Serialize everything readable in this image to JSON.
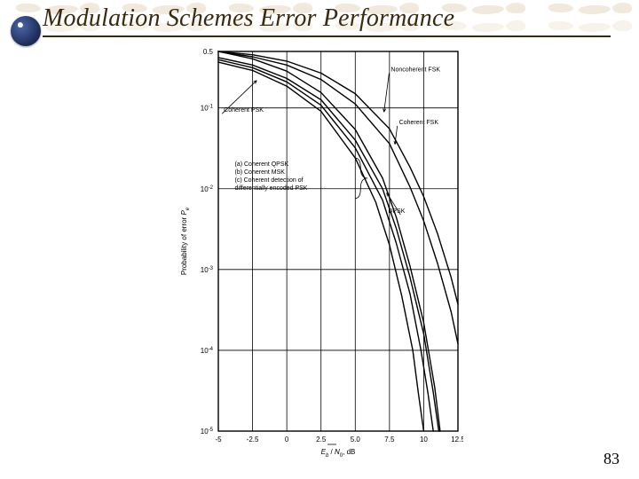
{
  "title": "Modulation Schemes Error Performance",
  "page_number": "83",
  "chart": {
    "type": "line",
    "background_color": "#ffffff",
    "grid_color": "#000000",
    "axis": {
      "x": {
        "label_tex": "E_b / N_0, dB",
        "min": -5.0,
        "max": 12.5,
        "ticks": [
          -5,
          -2.5,
          0,
          2.5,
          5.0,
          7.5,
          10,
          12.5
        ],
        "tick_labels": [
          "-5",
          "-2.5",
          "0",
          "2.5",
          "5.0",
          "7.5",
          "10",
          "12.5"
        ]
      },
      "y": {
        "label": "Probability of error  P_e",
        "log": true,
        "exponents": [
          -1,
          -2,
          -3,
          -4,
          -5
        ],
        "top_label": "0.5",
        "extra_top_exp": -0.301
      }
    },
    "grid": {
      "line_width": 1
    },
    "curve_color": "#000000",
    "curve_width": 1.4,
    "curves": {
      "coherent_psk": [
        [
          -5,
          0.368
        ],
        [
          -2.5,
          0.291
        ],
        [
          0,
          0.186
        ],
        [
          2.5,
          0.091
        ],
        [
          5,
          0.024
        ],
        [
          6.5,
          0.0068
        ],
        [
          7.5,
          0.002
        ],
        [
          8.4,
          0.00047
        ],
        [
          9.2,
          0.0001
        ],
        [
          9.6,
          3e-05
        ],
        [
          10.0,
          1e-05
        ]
      ],
      "coherent_qpsk_msk": [
        [
          -5,
          0.395
        ],
        [
          -2.5,
          0.315
        ],
        [
          0,
          0.21
        ],
        [
          2.5,
          0.108
        ],
        [
          5,
          0.032
        ],
        [
          7,
          0.0072
        ],
        [
          8,
          0.0021
        ],
        [
          9,
          0.0005
        ],
        [
          9.8,
          0.0001
        ],
        [
          10.3,
          3e-05
        ],
        [
          10.7,
          1e-05
        ]
      ],
      "coherent_diffenc_psk": [
        [
          -5,
          0.42
        ],
        [
          -2.5,
          0.34
        ],
        [
          0,
          0.232
        ],
        [
          2.5,
          0.126
        ],
        [
          5,
          0.04
        ],
        [
          7,
          0.01
        ],
        [
          8,
          0.0032
        ],
        [
          9,
          0.0008
        ],
        [
          10,
          0.00016
        ],
        [
          10.7,
          3e-05
        ],
        [
          11.1,
          1e-05
        ]
      ],
      "dpsk": [
        [
          -5,
          0.5
        ],
        [
          -2.5,
          0.405
        ],
        [
          0,
          0.285
        ],
        [
          2.5,
          0.155
        ],
        [
          5,
          0.054
        ],
        [
          7,
          0.0135
        ],
        [
          8,
          0.0044
        ],
        [
          9,
          0.0011
        ],
        [
          10,
          0.00022
        ],
        [
          10.8,
          3.5e-05
        ],
        [
          11.2,
          1e-05
        ]
      ],
      "coherent_fsk": [
        [
          -5,
          0.5
        ],
        [
          -2.5,
          0.43
        ],
        [
          0,
          0.34
        ],
        [
          2.5,
          0.225
        ],
        [
          5,
          0.112
        ],
        [
          7.5,
          0.036
        ],
        [
          9,
          0.0105
        ],
        [
          10,
          0.004
        ],
        [
          11,
          0.0012
        ],
        [
          12,
          0.0003
        ],
        [
          12.5,
          0.00012
        ]
      ],
      "noncoherent_fsk": [
        [
          -5,
          0.5
        ],
        [
          -2.5,
          0.455
        ],
        [
          0,
          0.38
        ],
        [
          2.5,
          0.27
        ],
        [
          5,
          0.15
        ],
        [
          7.5,
          0.055
        ],
        [
          9,
          0.0185
        ],
        [
          10,
          0.008
        ],
        [
          11,
          0.0028
        ],
        [
          12,
          0.0008
        ],
        [
          12.5,
          0.00037
        ]
      ]
    },
    "annotations": {
      "noncoherent_fsk": {
        "text": "Noncoherent FSK",
        "x": 7.6,
        "y_exp": -0.55,
        "arrow_to": {
          "x": 7.1,
          "y_exp": -1.05
        }
      },
      "coherent_fsk": {
        "text": "Coherent FSK",
        "x": 8.2,
        "y_exp": -1.2,
        "arrow_to": {
          "x": 7.9,
          "y_exp": -1.45
        }
      },
      "coherent_psk": {
        "text": "Coherent PSK",
        "x": -4.6,
        "y_exp": -1.05,
        "arrow_to": {
          "x": -2.2,
          "y_exp": -0.66
        }
      },
      "dpsk": {
        "text": "DPSK",
        "x": 7.4,
        "y_exp": -2.3,
        "arrow_to": {
          "x": 7.3,
          "y_exp": -2.05
        }
      },
      "bracket": {
        "lines": [
          "(a) Coherent QPSK",
          "(b) Coherent MSK",
          "(c) Coherent detection of",
          "     differentially encoded PSK"
        ],
        "x_text": -3.8,
        "y_exp_top": -1.72,
        "bracket_x": 5.0,
        "bracket_y_top_exp": -1.62,
        "bracket_y_bot_exp": -2.12,
        "bracket_tip": {
          "x": 5.9,
          "y_exp": -1.87
        }
      }
    },
    "fonts": {
      "tick_pt": 8,
      "annotation_pt": 7,
      "ylabel_pt": 8,
      "xlabel_pt": 8
    }
  }
}
